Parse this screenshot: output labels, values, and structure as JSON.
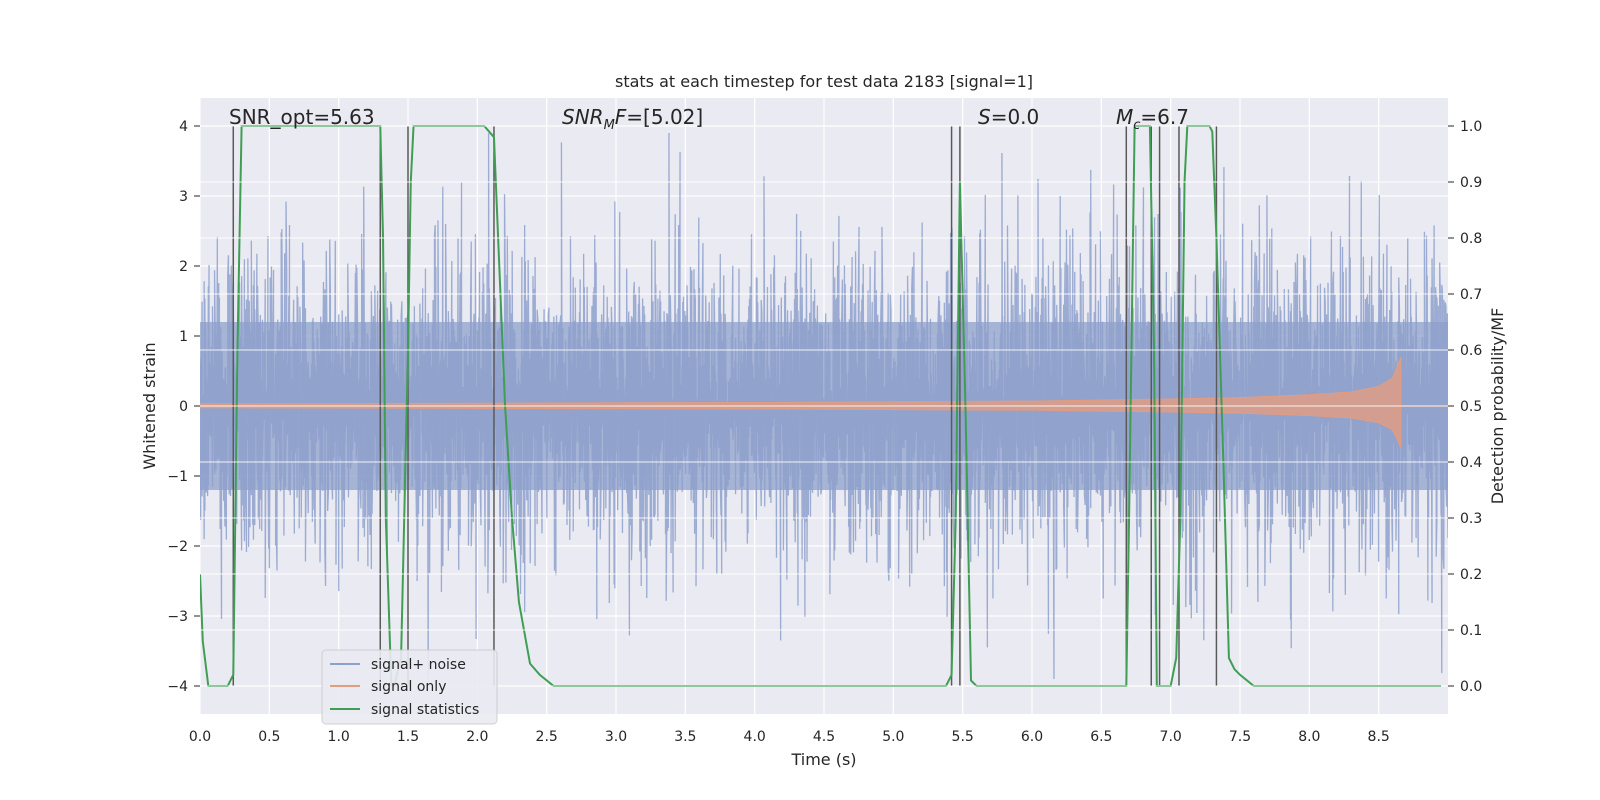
{
  "chart_data": {
    "type": "line",
    "title": "stats at each timestep for test data 2183 [signal=1]",
    "xlabel": "Time (s)",
    "ylabel": "Whitened strain",
    "ylabel_right": "Detection probability/MF",
    "xlim": [
      0.0,
      9.0
    ],
    "ylim": [
      -4.4,
      4.4
    ],
    "ylim_right": [
      -0.05,
      1.05
    ],
    "x_ticks": [
      "0.0",
      "0.5",
      "1.0",
      "1.5",
      "2.0",
      "2.5",
      "3.0",
      "3.5",
      "4.0",
      "4.5",
      "5.0",
      "5.5",
      "6.0",
      "6.5",
      "7.0",
      "7.5",
      "8.0",
      "8.5"
    ],
    "y_ticks": [
      "4",
      "3",
      "2",
      "1",
      "0",
      "−1",
      "−2",
      "−3",
      "−4"
    ],
    "y_ticks_right": [
      "1.0",
      "0.9",
      "0.8",
      "0.7",
      "0.6",
      "0.5",
      "0.4",
      "0.3",
      "0.2",
      "0.1",
      "0.0"
    ],
    "grid": true,
    "annotations": [
      {
        "text": "SNR_opt=5.63",
        "x": 0.2,
        "y": 1.0
      },
      {
        "text": "SNRMF=[5.02]",
        "x": 2.6,
        "y": 1.0
      },
      {
        "text": "S=0.0",
        "x": 5.6,
        "y": 1.0
      },
      {
        "text": "Mc=6.7",
        "x": 6.6,
        "y": 1.0
      }
    ],
    "legend": {
      "position": "lower-left",
      "entries": [
        "signal+ noise",
        "signal only",
        "signal statistics"
      ]
    },
    "colors": {
      "noise": "#8da0cb",
      "signal": "#e39c80",
      "stats": "#3f9e53",
      "markers": "#5a5a5a",
      "background": "#eaeaf2",
      "grid": "#ffffff"
    },
    "series": [
      {
        "name": "signal+ noise",
        "kind": "noise-band",
        "sigma": 1.0,
        "peak_abs": 3.9,
        "x_range": [
          0.0,
          9.0
        ]
      },
      {
        "name": "signal only",
        "kind": "chirp-envelope",
        "x": [
          0.0,
          2.0,
          4.0,
          5.0,
          6.0,
          7.0,
          7.5,
          8.0,
          8.3,
          8.5,
          8.6,
          8.66
        ],
        "envelope": [
          0.03,
          0.04,
          0.05,
          0.06,
          0.07,
          0.1,
          0.12,
          0.16,
          0.2,
          0.28,
          0.4,
          0.7
        ]
      },
      {
        "name": "signal statistics",
        "kind": "probability",
        "x": [
          0.0,
          0.02,
          0.06,
          0.1,
          0.15,
          0.2,
          0.24,
          0.27,
          0.3,
          0.8,
          1.3,
          1.32,
          1.34,
          1.36,
          1.38,
          1.4,
          1.45,
          1.5,
          1.52,
          1.54,
          1.58,
          1.7,
          2.05,
          2.12,
          2.15,
          2.2,
          2.25,
          2.3,
          2.38,
          2.45,
          2.55,
          2.75,
          2.9,
          4.0,
          5.2,
          5.25,
          5.3,
          5.38,
          5.42,
          5.45,
          5.48,
          5.52,
          5.56,
          5.6,
          6.0,
          6.5,
          6.68,
          6.7,
          6.74,
          6.78,
          6.8,
          6.85,
          6.88,
          6.9,
          6.95,
          7.0,
          7.04,
          7.07,
          7.1,
          7.12,
          7.15,
          7.28,
          7.3,
          7.33,
          7.38,
          7.42,
          7.46,
          7.5,
          7.6,
          8.0,
          8.5,
          8.95
        ],
        "y": [
          0.2,
          0.08,
          0.0,
          0.0,
          0.0,
          0.0,
          0.02,
          0.6,
          1.0,
          1.0,
          1.0,
          0.8,
          0.3,
          0.15,
          0.0,
          0.0,
          0.05,
          0.6,
          0.9,
          1.0,
          1.0,
          1.0,
          1.0,
          0.98,
          0.8,
          0.5,
          0.3,
          0.15,
          0.04,
          0.02,
          0.0,
          0.0,
          0.0,
          0.0,
          0.0,
          0.0,
          0.0,
          0.0,
          0.02,
          0.3,
          0.9,
          0.5,
          0.01,
          0.0,
          0.0,
          0.0,
          0.0,
          0.3,
          1.0,
          1.0,
          1.0,
          1.0,
          0.6,
          0.0,
          0.0,
          0.0,
          0.05,
          0.3,
          0.9,
          1.0,
          1.0,
          1.0,
          0.99,
          0.8,
          0.4,
          0.05,
          0.03,
          0.02,
          0.0,
          0.0,
          0.0,
          0.0
        ]
      }
    ],
    "marker_lines_x": [
      0.24,
      1.3,
      1.5,
      2.12,
      5.42,
      5.48,
      6.68,
      6.86,
      6.92,
      7.06,
      7.33
    ]
  }
}
